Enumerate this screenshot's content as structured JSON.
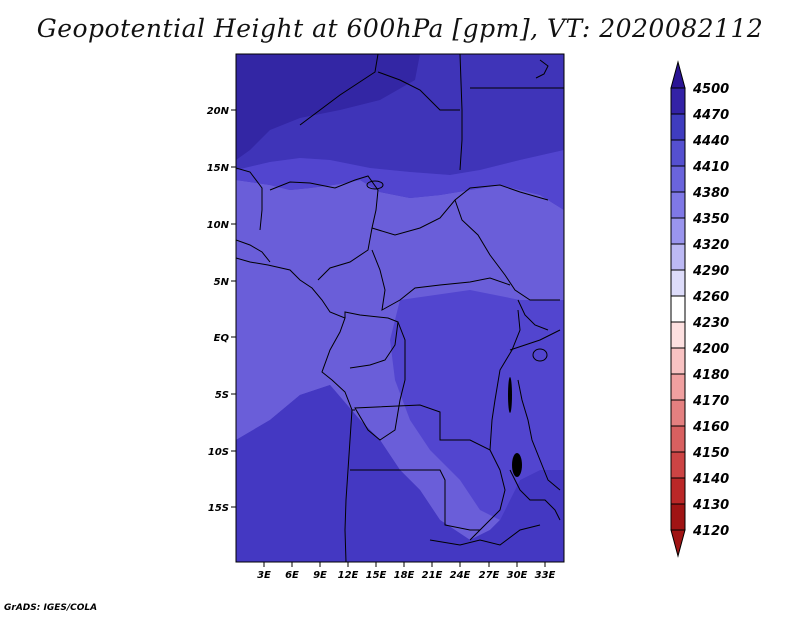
{
  "title": "Geopotential Height at 600hPa [gpm], VT: 2020082112",
  "credit": "GrADS: IGES/COLA",
  "axes": {
    "lat_ticks": [
      "20N",
      "15N",
      "10N",
      "5N",
      "EQ",
      "5S",
      "10S",
      "15S"
    ],
    "lon_ticks": [
      "3E",
      "6E",
      "9E",
      "12E",
      "15E",
      "18E",
      "21E",
      "24E",
      "27E",
      "30E",
      "33E"
    ]
  },
  "colorbar": {
    "levels": [
      "4500",
      "4470",
      "4440",
      "4410",
      "4380",
      "4350",
      "4320",
      "4290",
      "4260",
      "4230",
      "4200",
      "4180",
      "4170",
      "4160",
      "4150",
      "4140",
      "4130",
      "4120"
    ],
    "colors": [
      "#2a1494",
      "#3322a6",
      "#3f3cbf",
      "#5550d0",
      "#6a64dc",
      "#7f78e6",
      "#9a95ee",
      "#bcb9f4",
      "#dddcfa",
      "#ffffff",
      "#fde0e0",
      "#f8c2c2",
      "#f0a0a0",
      "#e48080",
      "#d86060",
      "#cc4444",
      "#bb2828",
      "#a01414"
    ]
  },
  "map": {
    "field_colors": {
      "high": "#3a2ea8",
      "upper": "#4438c2",
      "mid": "#5245cf",
      "low": "#6a5ed9"
    }
  }
}
